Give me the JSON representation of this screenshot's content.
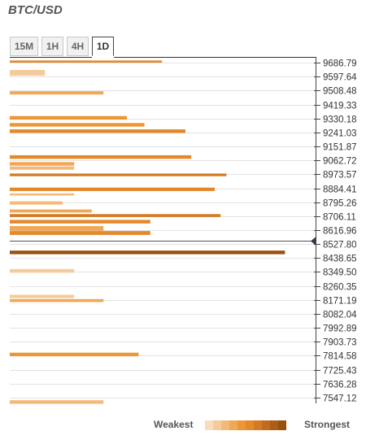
{
  "title": "BTC/USD",
  "tabs": [
    {
      "label": "15M",
      "active": false
    },
    {
      "label": "1H",
      "active": false
    },
    {
      "label": "4H",
      "active": false
    },
    {
      "label": "1D",
      "active": true
    }
  ],
  "legend": {
    "weakest_label": "Weakest",
    "strongest_label": "Strongest",
    "colors": [
      "#f9dcbd",
      "#f6cb9b",
      "#f3b979",
      "#f0a756",
      "#ec9735",
      "#e4892b",
      "#d47a22",
      "#c26b1c",
      "#ad5d16",
      "#99500f"
    ]
  },
  "chart_data": {
    "type": "bar",
    "orientation": "horizontal",
    "title": "BTC/USD",
    "xlabel": "",
    "ylabel": "",
    "current_price_marker": 8550,
    "price_levels": [
      "9686.79",
      "9597.64",
      "9508.48",
      "9419.33",
      "9330.18",
      "9241.03",
      "9151.87",
      "9062.72",
      "8973.57",
      "8884.41",
      "8795.26",
      "8706.11",
      "8616.96",
      "8527.80",
      "8438.65",
      "8349.50",
      "8260.35",
      "8171.19",
      "8082.04",
      "7992.89",
      "7903.73",
      "7814.58",
      "7725.43",
      "7636.28",
      "7547.12"
    ],
    "bars": [
      {
        "top": 9700.2,
        "bottom": 9686.8,
        "strength": 26,
        "level": 5
      },
      {
        "top": 9640.2,
        "bottom": 9603.1,
        "strength": 6,
        "level": 1
      },
      {
        "top": 9504.1,
        "bottom": 9483.2,
        "strength": 16,
        "level": 3
      },
      {
        "top": 9345.5,
        "bottom": 9322.4,
        "strength": 20,
        "level": 4
      },
      {
        "top": 9301.0,
        "bottom": 9278.1,
        "strength": 23,
        "level": 4
      },
      {
        "top": 9260.2,
        "bottom": 9237.3,
        "strength": 30,
        "level": 5
      },
      {
        "top": 9095.2,
        "bottom": 9072.3,
        "strength": 31,
        "level": 5
      },
      {
        "top": 9051.5,
        "bottom": 9028.6,
        "strength": 11,
        "level": 3
      },
      {
        "top": 9023.5,
        "bottom": 9002.6,
        "strength": 11,
        "level": 2
      },
      {
        "top": 8978.4,
        "bottom": 8961.4,
        "strength": 37,
        "level": 6
      },
      {
        "top": 8888.6,
        "bottom": 8866.6,
        "strength": 35,
        "level": 5
      },
      {
        "top": 8851.2,
        "bottom": 8838.2,
        "strength": 11,
        "level": 2
      },
      {
        "top": 8800.6,
        "bottom": 8779.6,
        "strength": 9,
        "level": 2
      },
      {
        "top": 8749.0,
        "bottom": 8730.0,
        "strength": 14,
        "level": 3
      },
      {
        "top": 8719.5,
        "bottom": 8700.6,
        "strength": 36,
        "level": 6
      },
      {
        "top": 8682.3,
        "bottom": 8659.3,
        "strength": 24,
        "level": 5
      },
      {
        "top": 8642.8,
        "bottom": 8612.7,
        "strength": 16,
        "level": 3
      },
      {
        "top": 8611.5,
        "bottom": 8586.6,
        "strength": 24,
        "level": 5
      },
      {
        "top": 8486.3,
        "bottom": 8463.4,
        "strength": 47,
        "level": 9
      },
      {
        "top": 8368.0,
        "bottom": 8345.1,
        "strength": 11,
        "level": 1
      },
      {
        "top": 8204.8,
        "bottom": 8182.9,
        "strength": 11,
        "level": 1
      },
      {
        "top": 8176.4,
        "bottom": 8157.5,
        "strength": 16,
        "level": 3
      },
      {
        "top": 7834.1,
        "bottom": 7811.2,
        "strength": 22,
        "level": 4
      },
      {
        "top": 7530.3,
        "bottom": 7507.4,
        "strength": 16,
        "level": 2
      }
    ]
  }
}
